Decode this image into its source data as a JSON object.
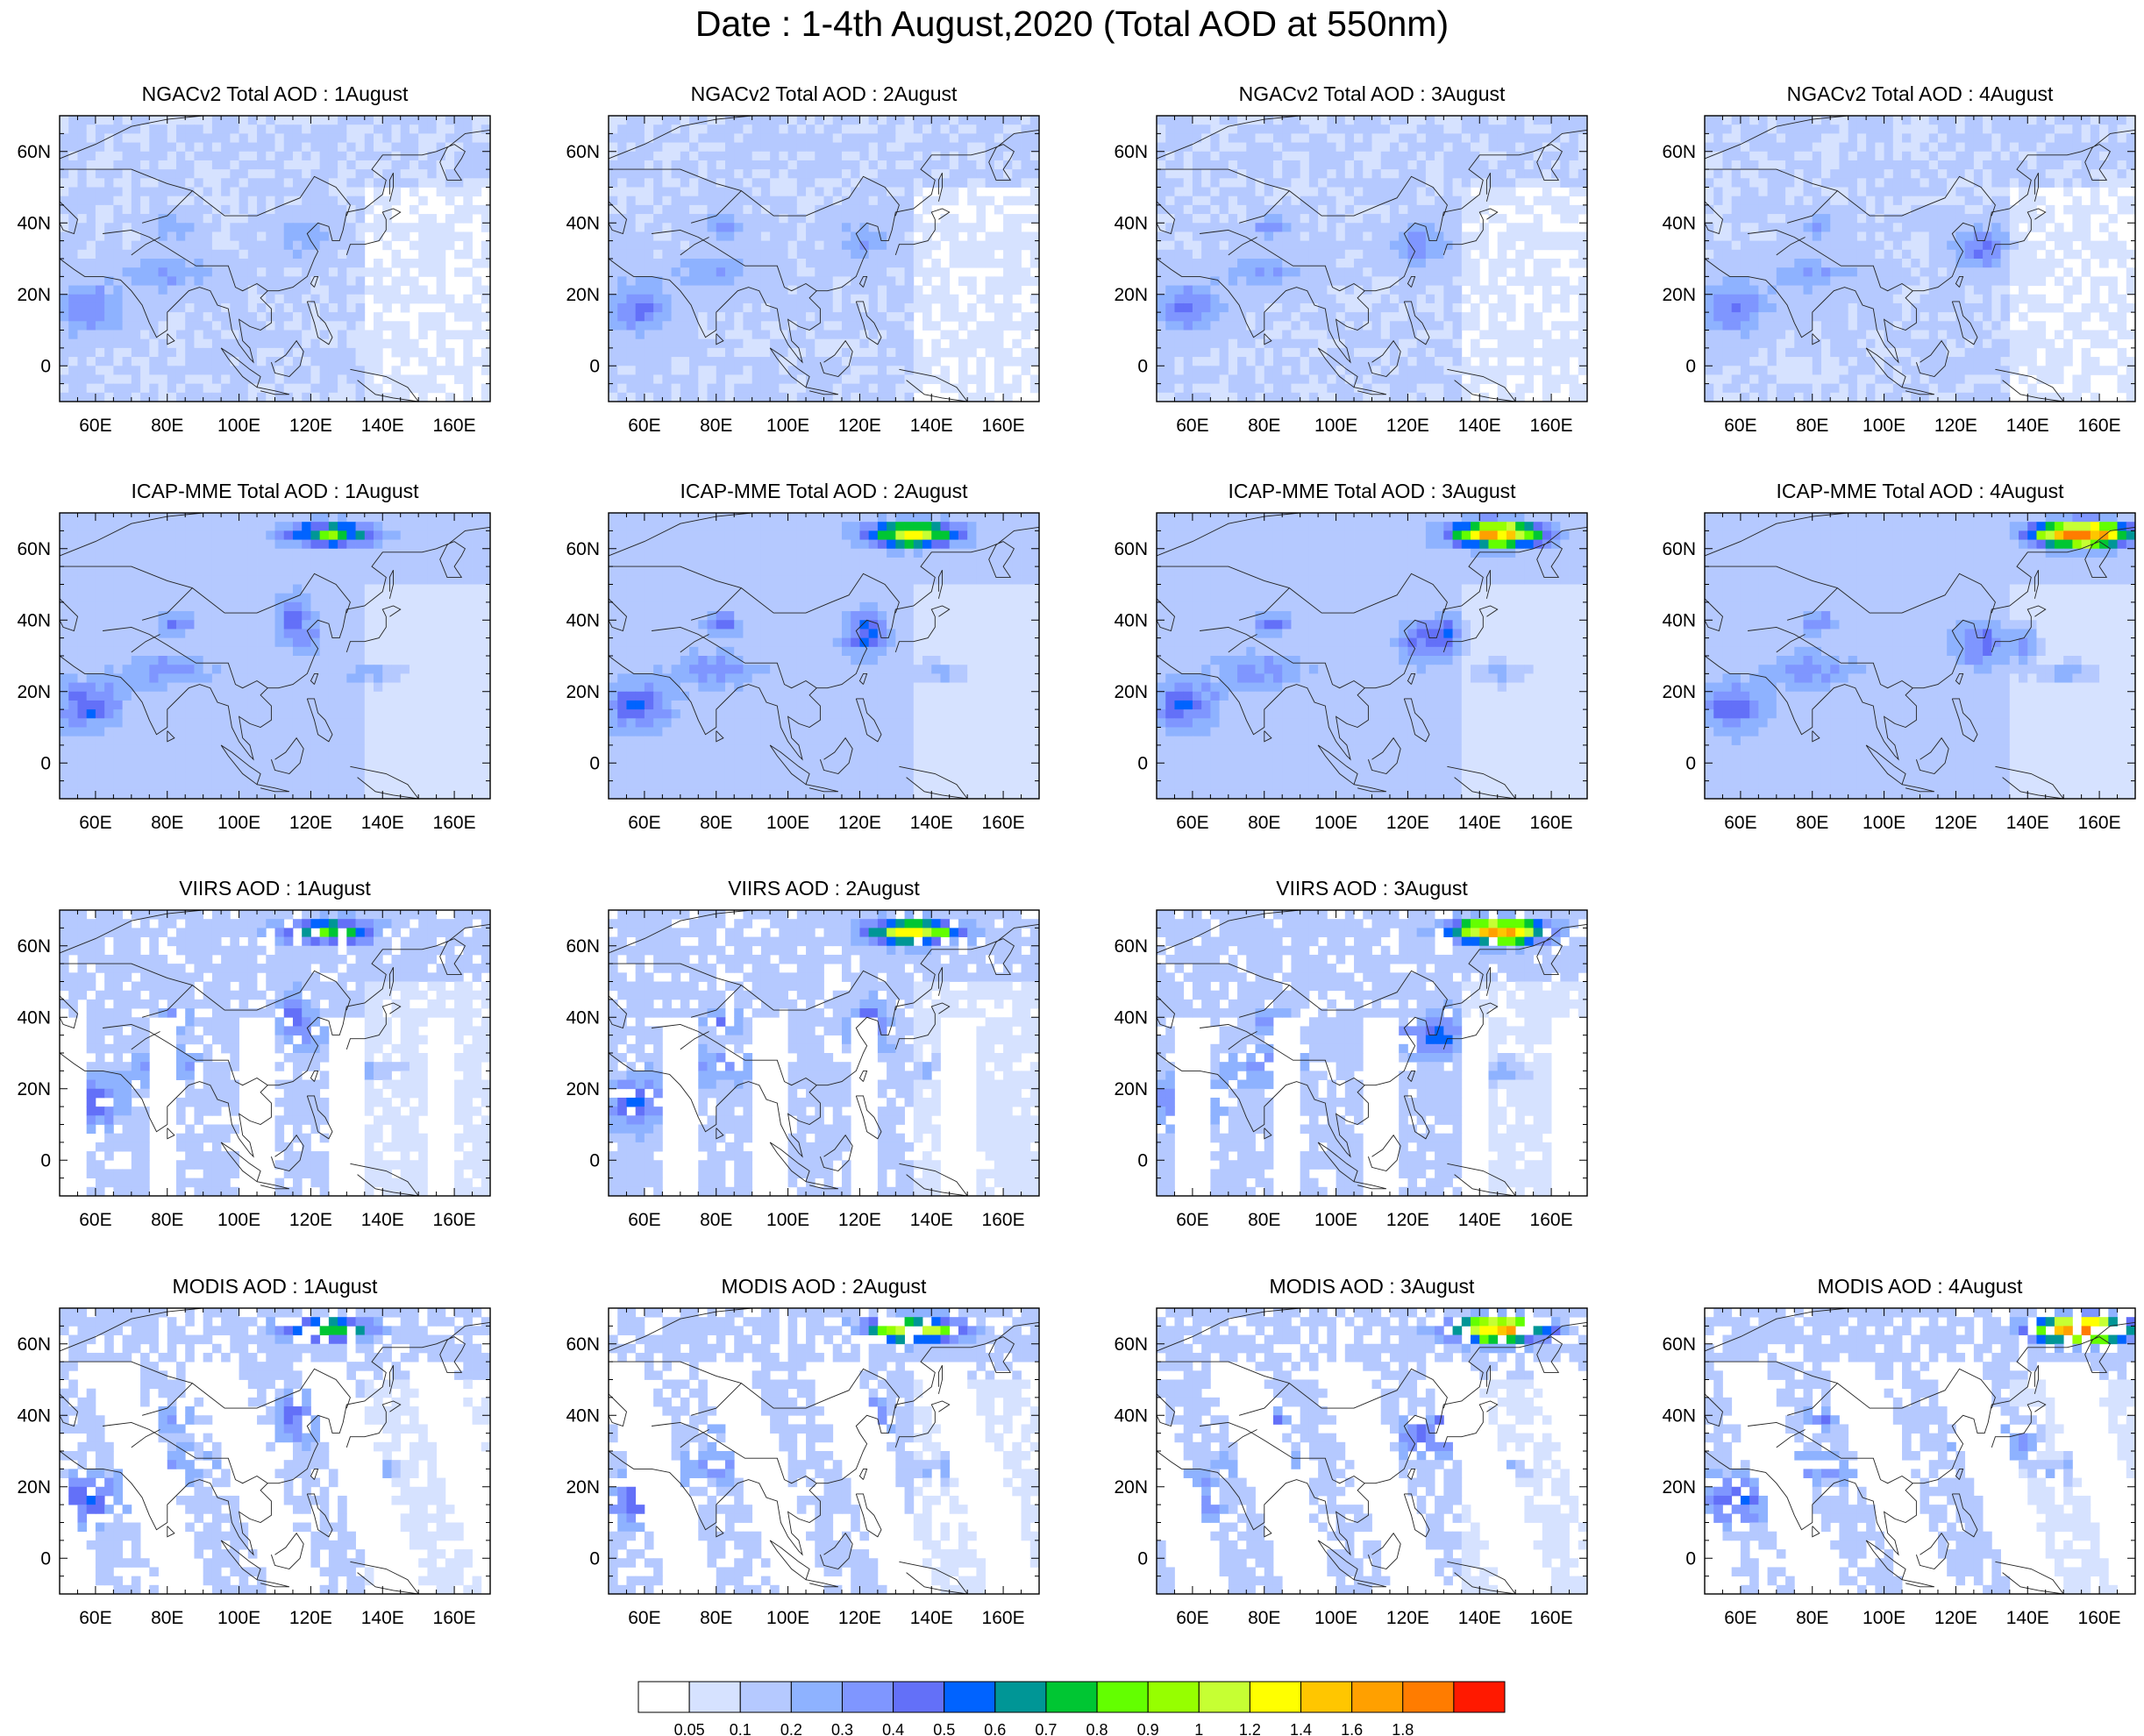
{
  "title": "Date : 1-4th August,2020 (Total AOD at 550nm)",
  "axes": {
    "lon_ticks": [
      "60E",
      "80E",
      "100E",
      "120E",
      "140E",
      "160E"
    ],
    "lon_values": [
      60,
      80,
      100,
      120,
      140,
      160
    ],
    "lat_ticks": [
      "60N",
      "40N",
      "20N",
      "0"
    ],
    "lat_values": [
      60,
      40,
      20,
      0
    ],
    "lon_range": [
      50,
      170
    ],
    "lat_range": [
      -10,
      70
    ]
  },
  "rows": [
    {
      "id": "ngac",
      "panels": [
        {
          "title": "NGACv2 Total AOD : 1August",
          "day": 1
        },
        {
          "title": "NGACv2 Total AOD : 2August",
          "day": 2
        },
        {
          "title": "NGACv2 Total AOD : 3August",
          "day": 3
        },
        {
          "title": "NGACv2 Total AOD : 4August",
          "day": 4
        }
      ]
    },
    {
      "id": "icap",
      "panels": [
        {
          "title": "ICAP-MME Total AOD : 1August",
          "day": 1
        },
        {
          "title": "ICAP-MME Total AOD : 2August",
          "day": 2
        },
        {
          "title": "ICAP-MME Total AOD : 3August",
          "day": 3
        },
        {
          "title": "ICAP-MME Total AOD : 4August",
          "day": 4
        }
      ]
    },
    {
      "id": "viirs",
      "panels": [
        {
          "title": "VIIRS AOD : 1August",
          "day": 1
        },
        {
          "title": "VIIRS AOD : 2August",
          "day": 2
        },
        {
          "title": "VIIRS AOD : 3August",
          "day": 3
        }
      ]
    },
    {
      "id": "modis",
      "panels": [
        {
          "title": "MODIS AOD : 1August",
          "day": 1
        },
        {
          "title": "MODIS AOD : 2August",
          "day": 2
        },
        {
          "title": "MODIS AOD : 3August",
          "day": 3
        },
        {
          "title": "MODIS AOD : 4August",
          "day": 4
        }
      ]
    }
  ],
  "colorbar": {
    "labels": [
      "0.05",
      "0.1",
      "0.2",
      "0.3",
      "0.4",
      "0.5",
      "0.6",
      "0.7",
      "0.8",
      "0.9",
      "1",
      "1.2",
      "1.4",
      "1.6",
      "1.8"
    ],
    "colors": [
      "#ffffff",
      "#d6e2ff",
      "#b5c9ff",
      "#8eb2ff",
      "#7f96ff",
      "#6370f8",
      "#0063ff",
      "#009696",
      "#00c633",
      "#63ff00",
      "#96ff00",
      "#c6ff33",
      "#ffff00",
      "#ffc600",
      "#ffa000",
      "#ff7c00",
      "#ff1900"
    ]
  }
}
